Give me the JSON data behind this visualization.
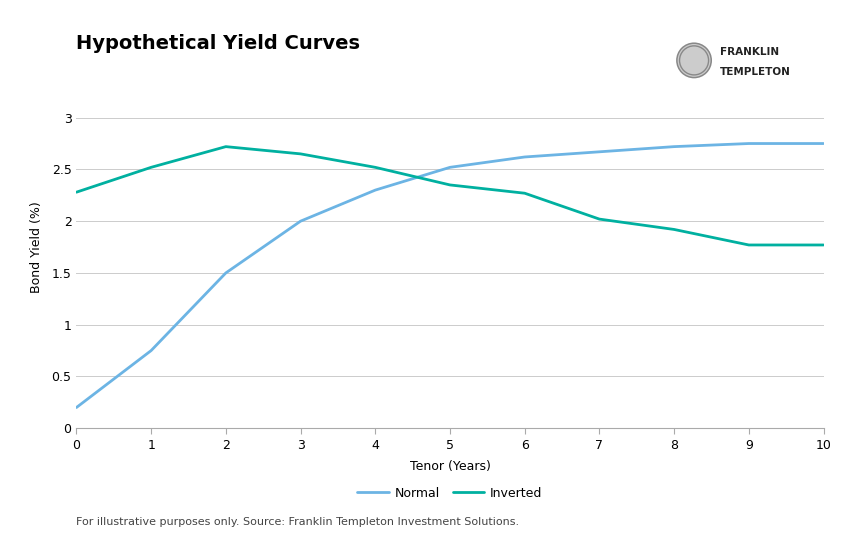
{
  "title": "Hypothetical Yield Curves",
  "xlabel": "Tenor (Years)",
  "ylabel": "Bond Yield (%)",
  "normal_x": [
    0,
    1,
    2,
    3,
    4,
    5,
    6,
    7,
    8,
    9,
    10
  ],
  "normal_y": [
    0.2,
    0.75,
    1.5,
    2.0,
    2.3,
    2.52,
    2.62,
    2.67,
    2.72,
    2.75,
    2.75
  ],
  "inverted_x": [
    0,
    1,
    2,
    3,
    4,
    5,
    6,
    7,
    8,
    9,
    10
  ],
  "inverted_y": [
    2.28,
    2.52,
    2.72,
    2.65,
    2.52,
    2.35,
    2.27,
    2.02,
    1.92,
    1.77,
    1.77
  ],
  "normal_color": "#6cb4e4",
  "inverted_color": "#00b0a0",
  "xlim": [
    0,
    10
  ],
  "ylim": [
    0,
    3.5
  ],
  "yticks": [
    0,
    0.5,
    1.0,
    1.5,
    2.0,
    2.5,
    3.0
  ],
  "ytick_labels": [
    "0",
    "0.5",
    "1",
    "1.5",
    "2",
    "2.5",
    "3"
  ],
  "xticks": [
    0,
    1,
    2,
    3,
    4,
    5,
    6,
    7,
    8,
    9,
    10
  ],
  "footnote": "For illustrative purposes only. Source: Franklin Templeton Investment Solutions.",
  "legend_normal": "Normal",
  "legend_inverted": "Inverted",
  "bg_color": "#ffffff",
  "grid_color": "#cccccc",
  "title_fontsize": 14,
  "axis_label_fontsize": 9,
  "tick_fontsize": 9,
  "legend_fontsize": 9,
  "footnote_fontsize": 8
}
